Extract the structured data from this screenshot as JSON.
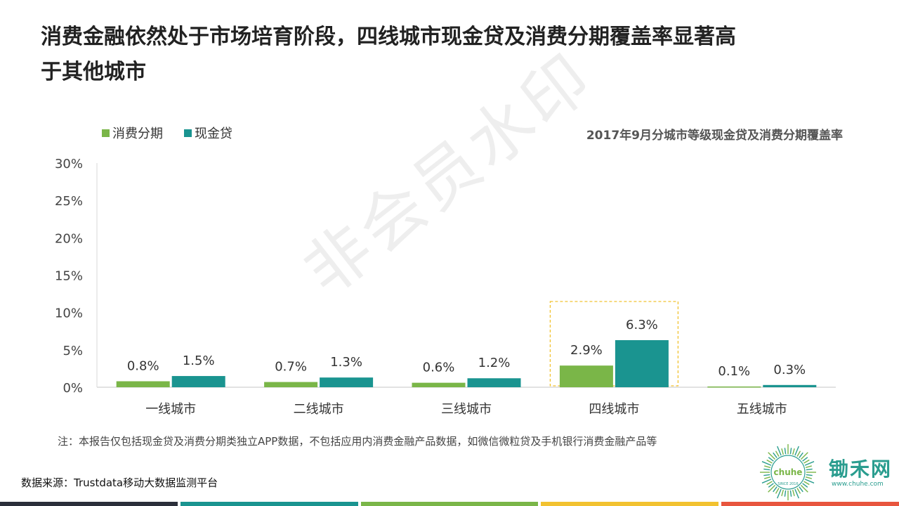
{
  "title_line1": "消费金融依然处于市场培育阶段，四线城市现金贷及消费分期覆盖率显著高",
  "title_line2": "于其他城市",
  "legend": {
    "items": [
      {
        "label": "消费分期",
        "color": "#7ab648"
      },
      {
        "label": "现金贷",
        "color": "#1a9490"
      }
    ]
  },
  "chart_subtitle": "2017年9月分城市等级现金贷及消费分期覆盖率",
  "watermark": "非会员水印",
  "chart_data": {
    "type": "bar",
    "title": "2017年9月分城市等级现金贷及消费分期覆盖率",
    "categories": [
      "一线城市",
      "二线城市",
      "三线城市",
      "四线城市",
      "五线城市"
    ],
    "series": [
      {
        "name": "消费分期",
        "color": "#7ab648",
        "values": [
          0.8,
          0.7,
          0.6,
          2.9,
          0.1
        ],
        "labels": [
          "0.8%",
          "0.7%",
          "0.6%",
          "2.9%",
          "0.1%"
        ]
      },
      {
        "name": "现金贷",
        "color": "#1a9490",
        "values": [
          1.5,
          1.3,
          1.2,
          6.3,
          0.3
        ],
        "labels": [
          "1.5%",
          "1.3%",
          "1.2%",
          "6.3%",
          "0.3%"
        ]
      }
    ],
    "yticks": [
      "0%",
      "5%",
      "10%",
      "15%",
      "20%",
      "25%",
      "30%"
    ],
    "ylim": [
      0,
      30
    ],
    "highlight_category": "四线城市",
    "highlight_color": "#f2c230",
    "grid": false
  },
  "note": "注：本报告仅包括现金贷及消费分期类独立APP数据，不包括应用内消费金融产品数据，如微信微粒贷及手机银行消费金融产品等",
  "source": "数据来源：Trustdata移动大数据监测平台",
  "logo": {
    "name": "锄禾网",
    "url": "www.chuhe.com",
    "badge_text": "SINCE 2016"
  },
  "footer_colors": [
    "#2b2f3a",
    "#1a9490",
    "#7ab648",
    "#f2c230",
    "#e8553e"
  ]
}
